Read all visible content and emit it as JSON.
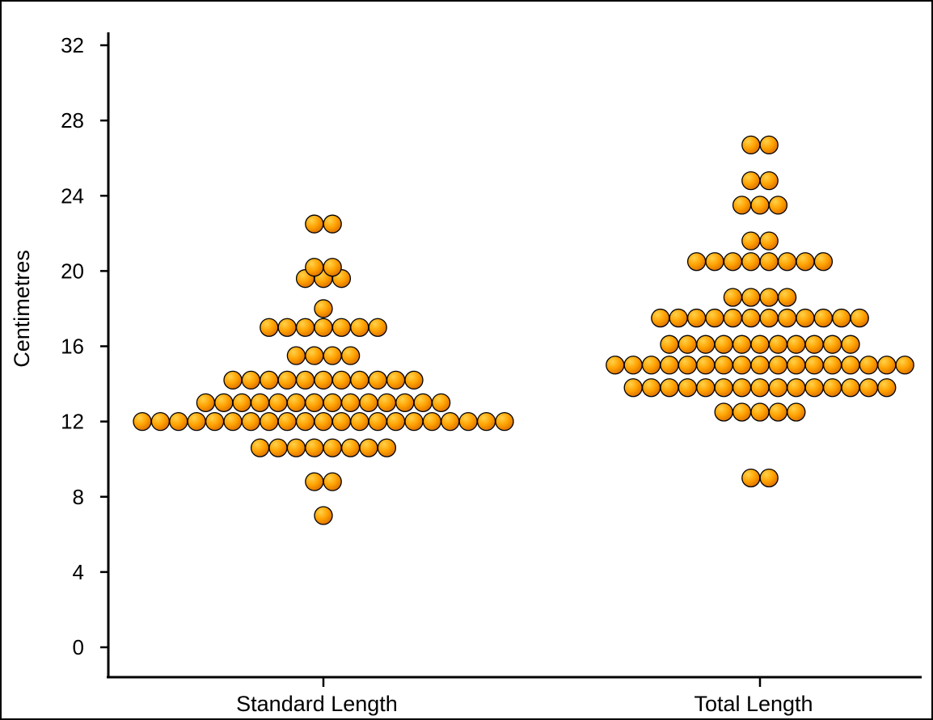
{
  "chart_data": {
    "type": "scatter",
    "subtype": "dot-plot",
    "title": "",
    "xlabel": "",
    "ylabel": "Centimetres",
    "ylim": [
      0,
      32
    ],
    "yticks": [
      0,
      4,
      8,
      12,
      16,
      20,
      24,
      28,
      32
    ],
    "grid": false,
    "legend": "none",
    "marker_color": "#ffa000",
    "marker_edge_color": "#000000",
    "categories": [
      "Standard Length",
      "Total Length"
    ],
    "series": [
      {
        "category": "Standard Length",
        "rows": [
          {
            "y": 7.0,
            "count": 1
          },
          {
            "y": 8.8,
            "count": 2
          },
          {
            "y": 10.6,
            "count": 8
          },
          {
            "y": 12.0,
            "count": 21
          },
          {
            "y": 13.0,
            "count": 14
          },
          {
            "y": 14.2,
            "count": 11
          },
          {
            "y": 15.5,
            "count": 4
          },
          {
            "y": 17.0,
            "count": 7
          },
          {
            "y": 18.0,
            "count": 1
          },
          {
            "y": 19.6,
            "count": 3
          },
          {
            "y": 20.2,
            "count": 2
          },
          {
            "y": 22.5,
            "count": 2
          }
        ]
      },
      {
        "category": "Total Length",
        "rows": [
          {
            "y": 9.0,
            "count": 2
          },
          {
            "y": 12.5,
            "count": 5
          },
          {
            "y": 13.8,
            "count": 15
          },
          {
            "y": 15.0,
            "count": 17
          },
          {
            "y": 16.1,
            "count": 11
          },
          {
            "y": 17.5,
            "count": 12
          },
          {
            "y": 18.6,
            "count": 4
          },
          {
            "y": 20.5,
            "count": 8
          },
          {
            "y": 21.6,
            "count": 2
          },
          {
            "y": 23.5,
            "count": 3
          },
          {
            "y": 24.8,
            "count": 2
          },
          {
            "y": 26.7,
            "count": 2
          }
        ]
      }
    ]
  }
}
